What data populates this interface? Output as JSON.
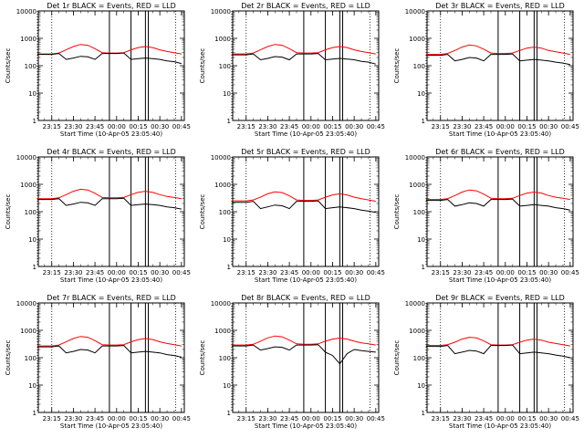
{
  "figure": {
    "x_tick_labels": [
      "23:15",
      "23:30",
      "23:45",
      "00:00",
      "00:15",
      "00:30",
      "00:45"
    ],
    "x_axis_label": "Start Time (10-Apr-05 23:05:40)",
    "y_axis_label": "Counts/sec",
    "y_tick_labels": [
      "1",
      "10",
      "100",
      "1000",
      "10000"
    ],
    "colors": {
      "events": "#000000",
      "lld": "#ff0000",
      "background": "#ffffff"
    }
  },
  "chart_data": [
    {
      "type": "line",
      "title": "Det 1r BLACK = Events, RED = LLD",
      "x": [
        "23:05",
        "23:10",
        "23:15",
        "23:20",
        "23:25",
        "23:30",
        "23:35",
        "23:40",
        "23:45",
        "23:50",
        "23:55",
        "00:00",
        "00:05",
        "00:10",
        "00:15",
        "00:20",
        "00:25",
        "00:30",
        "00:35",
        "00:40",
        "00:45"
      ],
      "series": [
        {
          "name": "LLD",
          "color": "#ff0000",
          "values": [
            270,
            270,
            270,
            290,
            380,
            500,
            600,
            560,
            420,
            300,
            290,
            290,
            300,
            380,
            460,
            500,
            460,
            380,
            330,
            300,
            270
          ]
        },
        {
          "name": "Events",
          "color": "#000000",
          "values": [
            260,
            260,
            260,
            280,
            170,
            190,
            220,
            210,
            170,
            280,
            280,
            280,
            290,
            170,
            180,
            190,
            180,
            170,
            150,
            140,
            120
          ]
        }
      ],
      "ylim": [
        1,
        10000
      ],
      "y_scale": "log",
      "xlim": [
        "23:05:40",
        "00:47"
      ],
      "markers": {
        "dotted": [
          "23:05",
          "23:15",
          "00:41"
        ],
        "solid": [
          "23:55",
          "00:10",
          "00:20",
          "00:22"
        ]
      },
      "xlabel": "Start Time (10-Apr-05 23:05:40)",
      "ylabel": "Counts/sec"
    },
    {
      "type": "line",
      "title": "Det 2r BLACK = Events, RED = LLD",
      "x": [
        "23:05",
        "23:10",
        "23:15",
        "23:20",
        "23:25",
        "23:30",
        "23:35",
        "23:40",
        "23:45",
        "23:50",
        "23:55",
        "00:00",
        "00:05",
        "00:10",
        "00:15",
        "00:20",
        "00:25",
        "00:30",
        "00:35",
        "00:40",
        "00:45"
      ],
      "series": [
        {
          "name": "LLD",
          "color": "#ff0000",
          "values": [
            270,
            270,
            270,
            290,
            380,
            500,
            600,
            560,
            420,
            300,
            290,
            290,
            300,
            380,
            460,
            500,
            460,
            380,
            330,
            300,
            270
          ]
        },
        {
          "name": "Events",
          "color": "#000000",
          "values": [
            250,
            250,
            250,
            270,
            165,
            185,
            215,
            205,
            165,
            270,
            270,
            270,
            280,
            165,
            175,
            185,
            175,
            165,
            145,
            135,
            115
          ]
        }
      ],
      "ylim": [
        1,
        10000
      ],
      "y_scale": "log",
      "xlim": [
        "23:05:40",
        "00:47"
      ],
      "markers": {
        "dotted": [
          "23:05",
          "23:15",
          "00:41"
        ],
        "solid": [
          "23:55",
          "00:10",
          "00:20",
          "00:22"
        ]
      },
      "xlabel": "Start Time (10-Apr-05 23:05:40)",
      "ylabel": "Counts/sec"
    },
    {
      "type": "line",
      "title": "Det 3r BLACK = Events, RED = LLD",
      "x": [
        "23:05",
        "23:10",
        "23:15",
        "23:20",
        "23:25",
        "23:30",
        "23:35",
        "23:40",
        "23:45",
        "23:50",
        "23:55",
        "00:00",
        "00:05",
        "00:10",
        "00:15",
        "00:20",
        "00:25",
        "00:30",
        "00:35",
        "00:40",
        "00:45"
      ],
      "series": [
        {
          "name": "LLD",
          "color": "#ff0000",
          "values": [
            260,
            260,
            260,
            280,
            360,
            480,
            570,
            530,
            400,
            290,
            280,
            280,
            290,
            360,
            440,
            480,
            440,
            360,
            320,
            290,
            260
          ]
        },
        {
          "name": "Events",
          "color": "#000000",
          "values": [
            240,
            240,
            240,
            260,
            150,
            170,
            200,
            190,
            150,
            260,
            260,
            260,
            270,
            150,
            160,
            170,
            160,
            150,
            135,
            125,
            110
          ]
        }
      ],
      "ylim": [
        1,
        10000
      ],
      "y_scale": "log",
      "xlim": [
        "23:05:40",
        "00:47"
      ],
      "markers": {
        "dotted": [
          "23:05",
          "23:15",
          "00:41"
        ],
        "solid": [
          "23:55",
          "00:10",
          "00:20",
          "00:22"
        ]
      },
      "xlabel": "Start Time (10-Apr-05 23:05:40)",
      "ylabel": "Counts/sec"
    },
    {
      "type": "line",
      "title": "Det 4r BLACK = Events, RED = LLD",
      "x": [
        "23:05",
        "23:10",
        "23:15",
        "23:20",
        "23:25",
        "23:30",
        "23:35",
        "23:40",
        "23:45",
        "23:50",
        "23:55",
        "00:00",
        "00:05",
        "00:10",
        "00:15",
        "00:20",
        "00:25",
        "00:30",
        "00:35",
        "00:40",
        "00:45"
      ],
      "series": [
        {
          "name": "LLD",
          "color": "#ff0000",
          "values": [
            300,
            300,
            300,
            320,
            420,
            560,
            660,
            620,
            470,
            330,
            320,
            320,
            330,
            420,
            510,
            560,
            510,
            420,
            360,
            330,
            300
          ]
        },
        {
          "name": "Events",
          "color": "#000000",
          "values": [
            280,
            280,
            280,
            300,
            170,
            190,
            220,
            210,
            170,
            300,
            300,
            300,
            310,
            170,
            180,
            190,
            180,
            170,
            150,
            140,
            125
          ]
        }
      ],
      "ylim": [
        1,
        10000
      ],
      "y_scale": "log",
      "xlim": [
        "23:05:40",
        "00:47"
      ],
      "markers": {
        "dotted": [
          "23:05",
          "23:15",
          "00:41"
        ],
        "solid": [
          "23:55",
          "00:10",
          "00:20",
          "00:22"
        ]
      },
      "xlabel": "Start Time (10-Apr-05 23:05:40)",
      "ylabel": "Counts/sec"
    },
    {
      "type": "line",
      "title": "Det 5r BLACK = Events, RED = LLD",
      "x": [
        "23:05",
        "23:10",
        "23:15",
        "23:20",
        "23:25",
        "23:30",
        "23:35",
        "23:40",
        "23:45",
        "23:50",
        "23:55",
        "00:00",
        "00:05",
        "00:10",
        "00:15",
        "00:20",
        "00:25",
        "00:30",
        "00:35",
        "00:40",
        "00:45"
      ],
      "series": [
        {
          "name": "LLD",
          "color": "#ff0000",
          "values": [
            250,
            250,
            250,
            270,
            340,
            450,
            530,
            500,
            380,
            270,
            260,
            260,
            270,
            340,
            410,
            450,
            410,
            340,
            300,
            270,
            240
          ]
        },
        {
          "name": "Events",
          "color": "#000000",
          "values": [
            220,
            220,
            220,
            240,
            130,
            150,
            175,
            165,
            130,
            240,
            240,
            240,
            250,
            130,
            140,
            150,
            140,
            130,
            115,
            105,
            95
          ]
        }
      ],
      "ylim": [
        1,
        10000
      ],
      "y_scale": "log",
      "xlim": [
        "23:05:40",
        "00:47"
      ],
      "markers": {
        "dotted": [
          "23:05",
          "23:15",
          "00:41"
        ],
        "solid": [
          "23:55",
          "00:10",
          "00:20",
          "00:22"
        ]
      },
      "xlabel": "Start Time (10-Apr-05 23:05:40)",
      "ylabel": "Counts/sec"
    },
    {
      "type": "line",
      "title": "Det 6r BLACK = Events, RED = LLD",
      "x": [
        "23:05",
        "23:10",
        "23:15",
        "23:20",
        "23:25",
        "23:30",
        "23:35",
        "23:40",
        "23:45",
        "23:50",
        "23:55",
        "00:00",
        "00:05",
        "00:10",
        "00:15",
        "00:20",
        "00:25",
        "00:30",
        "00:35",
        "00:40",
        "00:45"
      ],
      "series": [
        {
          "name": "LLD",
          "color": "#ff0000",
          "values": [
            280,
            280,
            280,
            300,
            390,
            520,
            620,
            580,
            440,
            310,
            300,
            300,
            310,
            390,
            480,
            520,
            480,
            390,
            340,
            310,
            280
          ]
        },
        {
          "name": "Events",
          "color": "#000000",
          "values": [
            260,
            260,
            260,
            280,
            160,
            180,
            210,
            200,
            160,
            280,
            280,
            280,
            290,
            160,
            170,
            180,
            170,
            160,
            140,
            130,
            115
          ]
        }
      ],
      "ylim": [
        1,
        10000
      ],
      "y_scale": "log",
      "xlim": [
        "23:05:40",
        "00:47"
      ],
      "markers": {
        "dotted": [
          "23:05",
          "23:15",
          "00:41"
        ],
        "solid": [
          "23:55",
          "00:10",
          "00:20",
          "00:22"
        ]
      },
      "xlabel": "Start Time (10-Apr-05 23:05:40)",
      "ylabel": "Counts/sec"
    },
    {
      "type": "line",
      "title": "Det 7r BLACK = Events, RED = LLD",
      "x": [
        "23:05",
        "23:10",
        "23:15",
        "23:20",
        "23:25",
        "23:30",
        "23:35",
        "23:40",
        "23:45",
        "23:50",
        "23:55",
        "00:00",
        "00:05",
        "00:10",
        "00:15",
        "00:20",
        "00:25",
        "00:30",
        "00:35",
        "00:40",
        "00:45"
      ],
      "series": [
        {
          "name": "LLD",
          "color": "#ff0000",
          "values": [
            270,
            270,
            270,
            290,
            380,
            500,
            600,
            560,
            420,
            300,
            290,
            290,
            300,
            380,
            460,
            500,
            460,
            380,
            330,
            300,
            270
          ]
        },
        {
          "name": "Events",
          "color": "#000000",
          "values": [
            250,
            250,
            250,
            270,
            150,
            170,
            200,
            190,
            150,
            270,
            270,
            270,
            280,
            150,
            160,
            170,
            160,
            150,
            130,
            120,
            105
          ]
        }
      ],
      "ylim": [
        1,
        10000
      ],
      "y_scale": "log",
      "xlim": [
        "23:05:40",
        "00:47"
      ],
      "markers": {
        "dotted": [
          "23:05",
          "23:15",
          "00:41"
        ],
        "solid": [
          "23:55",
          "00:10",
          "00:20",
          "00:22"
        ]
      },
      "xlabel": "Start Time (10-Apr-05 23:05:40)",
      "ylabel": "Counts/sec"
    },
    {
      "type": "line",
      "title": "Det 8r BLACK = Events, RED = LLD",
      "x": [
        "23:05",
        "23:10",
        "23:15",
        "23:20",
        "23:25",
        "23:30",
        "23:35",
        "23:40",
        "23:45",
        "23:50",
        "23:55",
        "00:00",
        "00:05",
        "00:10",
        "00:15",
        "00:20",
        "00:25",
        "00:30",
        "00:35",
        "00:40",
        "00:45"
      ],
      "series": [
        {
          "name": "LLD",
          "color": "#ff0000",
          "values": [
            290,
            290,
            290,
            310,
            400,
            530,
            620,
            580,
            440,
            320,
            310,
            310,
            320,
            400,
            480,
            520,
            480,
            400,
            350,
            320,
            290
          ]
        },
        {
          "name": "Events",
          "color": "#000000",
          "values": [
            270,
            270,
            270,
            290,
            190,
            215,
            250,
            240,
            190,
            290,
            290,
            290,
            300,
            160,
            120,
            60,
            140,
            200,
            180,
            170,
            160
          ]
        }
      ],
      "ylim": [
        1,
        10000
      ],
      "y_scale": "log",
      "xlim": [
        "23:05:40",
        "00:47"
      ],
      "markers": {
        "dotted": [
          "23:05",
          "23:15",
          "00:41"
        ],
        "solid": [
          "23:55",
          "00:10",
          "00:20",
          "00:22"
        ]
      },
      "xlabel": "Start Time (10-Apr-05 23:05:40)",
      "ylabel": "Counts/sec"
    },
    {
      "type": "line",
      "title": "Det 9r BLACK = Events, RED = LLD",
      "x": [
        "23:05",
        "23:10",
        "23:15",
        "23:20",
        "23:25",
        "23:30",
        "23:35",
        "23:40",
        "23:45",
        "23:50",
        "23:55",
        "00:00",
        "00:05",
        "00:10",
        "00:15",
        "00:20",
        "00:25",
        "00:30",
        "00:35",
        "00:40",
        "00:45"
      ],
      "series": [
        {
          "name": "LLD",
          "color": "#ff0000",
          "values": [
            280,
            280,
            280,
            300,
            370,
            480,
            560,
            530,
            410,
            300,
            290,
            290,
            300,
            370,
            440,
            480,
            440,
            370,
            330,
            300,
            270
          ]
        },
        {
          "name": "Events",
          "color": "#000000",
          "values": [
            260,
            260,
            260,
            280,
            140,
            160,
            185,
            175,
            140,
            280,
            280,
            280,
            290,
            140,
            150,
            160,
            150,
            140,
            125,
            115,
            100
          ]
        }
      ],
      "ylim": [
        1,
        10000
      ],
      "y_scale": "log",
      "xlim": [
        "23:05:40",
        "00:47"
      ],
      "markers": {
        "dotted": [
          "23:05",
          "23:15",
          "00:41"
        ],
        "solid": [
          "23:55",
          "00:10",
          "00:20",
          "00:22"
        ]
      },
      "xlabel": "Start Time (10-Apr-05 23:05:40)",
      "ylabel": "Counts/sec"
    }
  ]
}
